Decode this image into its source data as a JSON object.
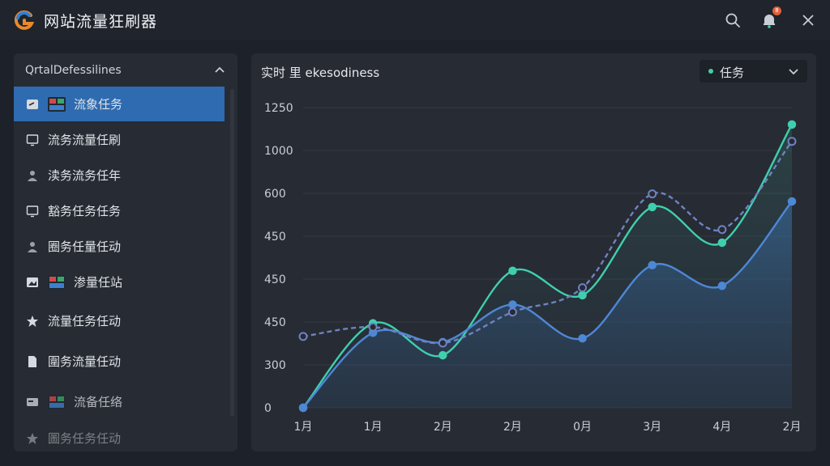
{
  "app": {
    "title": "网站流量狂刷器"
  },
  "titlebar": {
    "notification_badge": "8"
  },
  "sidebar": {
    "header": "QrtalDefessilines",
    "items": [
      {
        "label": "流象任务",
        "icon": "edit-icon",
        "has_image": true,
        "active": true
      },
      {
        "label": "流务流量任刷",
        "icon": "monitor-icon"
      },
      {
        "label": "渎务流务任年",
        "icon": "user-icon"
      },
      {
        "label": "豁务任务任务",
        "icon": "monitor-icon"
      },
      {
        "label": "圈务任量任动",
        "icon": "user-icon"
      },
      {
        "label": "渗量任站",
        "icon": "image-icon",
        "has_image": true
      },
      {
        "label": "流量任务任动",
        "icon": "star-icon"
      },
      {
        "label": "圍务流量任动",
        "icon": "file-icon"
      },
      {
        "label": "流备任络",
        "icon": "card-icon",
        "has_image": true
      },
      {
        "label": "圖务任务任动",
        "icon": "star-icon"
      }
    ]
  },
  "chart_panel": {
    "title": "实时 里 ekesodiness",
    "dropdown_label": "任务"
  },
  "colors": {
    "accent": "#2f6bb0",
    "teal": "#3fcfae",
    "blue": "#4d87d6",
    "dashed": "#6f82c2"
  },
  "chart_data": {
    "type": "line",
    "x": [
      "1月",
      "1月",
      "2月",
      "2月",
      "0月",
      "3月",
      "4月",
      "2月"
    ],
    "y_ticks": [
      "1250",
      "1000",
      "600",
      "450",
      "450",
      "450",
      "300",
      "0"
    ],
    "series": [
      {
        "name": "",
        "style": "solid-teal",
        "values": [
          0,
          450,
          280,
          730,
          600,
          1070,
          880,
          1510
        ]
      },
      {
        "name": "",
        "style": "solid-blue-area",
        "values": [
          0,
          400,
          350,
          550,
          370,
          760,
          650,
          1100
        ]
      },
      {
        "name": "",
        "style": "dashed",
        "values": [
          380,
          430,
          345,
          510,
          640,
          1140,
          950,
          1420
        ]
      }
    ],
    "ylim": [
      0,
      1600
    ],
    "grid": true
  }
}
